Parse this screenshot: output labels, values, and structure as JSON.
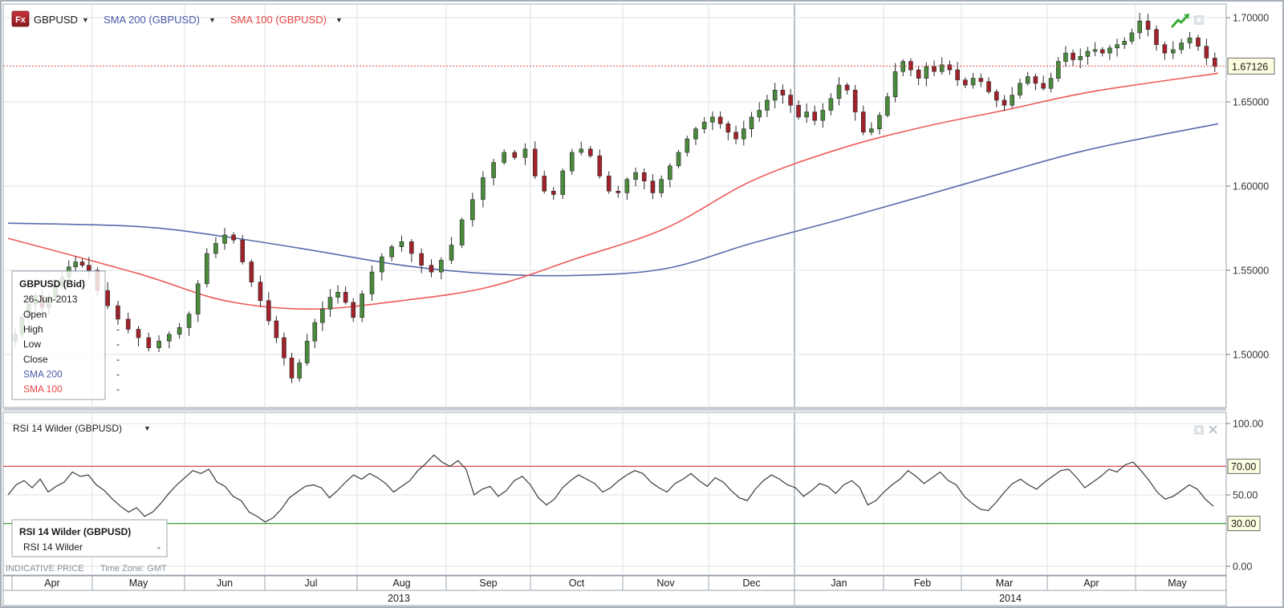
{
  "toolbar": {
    "symbol": "GBPUSD",
    "fx_badge": "Fx",
    "sma200_label": "SMA 200 (GBPUSD)",
    "sma100_label": "SMA 100 (GBPUSD)",
    "dropdown_glyph": "▼"
  },
  "colors": {
    "up_candle": "#4a8a3c",
    "down_candle": "#a2222a",
    "sma200": "#5a6aaa",
    "sma100": "#ee5a5a",
    "price_line": "#d84a4a",
    "rsi_line": "#3a3a3a",
    "rsi_upper": "#d84a4a",
    "rsi_lower": "#3a9a3a",
    "sma200_text": "#4a5aa8",
    "sma100_text": "#e84545"
  },
  "legend": {
    "title": "GBPUSD (Bid)",
    "date": "26-Jun-2013",
    "rows": [
      {
        "label": "Open",
        "value": "-"
      },
      {
        "label": "High",
        "value": "-"
      },
      {
        "label": "Low",
        "value": "-"
      },
      {
        "label": "Close",
        "value": "-"
      },
      {
        "label": "SMA 200",
        "value": "-"
      },
      {
        "label": "SMA 100",
        "value": "-"
      }
    ]
  },
  "rsi_panel": {
    "title": "RSI 14 Wilder (GBPUSD)",
    "legend_title": "RSI 14 Wilder (GBPUSD)",
    "legend_row_label": "RSI 14 Wilder",
    "legend_row_value": "-",
    "upper_label": "70.00",
    "lower_label": "30.00"
  },
  "footer": {
    "indicative": "INDICATIVE PRICE",
    "timezone": "Time Zone: GMT"
  },
  "icons": [
    "fx-badge-icon",
    "dropdown-arrow-icon",
    "trend-up-icon",
    "maximize-icon",
    "close-icon"
  ],
  "chart_data": [
    {
      "type": "candlestick",
      "title": "GBPUSD",
      "ylim": [
        1.465,
        1.71
      ],
      "y_ticks": [
        "1.70000",
        "1.65000",
        "1.60000",
        "1.55000",
        "1.50000"
      ],
      "current_price": 1.67126,
      "current_price_label": "1.67126",
      "x_months": [
        "Apr",
        "May",
        "Jun",
        "Jul",
        "Aug",
        "Sep",
        "Oct",
        "Nov",
        "Dec",
        "Jan",
        "Feb",
        "Mar",
        "Apr",
        "May"
      ],
      "x_years": [
        "2013",
        "2014"
      ],
      "close_path": [
        [
          1.512,
          1.522,
          1.53,
          1.535,
          1.528,
          1.534,
          1.541,
          1.546,
          1.552,
          1.555,
          1.553,
          1.55
        ],
        [
          1.538,
          1.529,
          1.521,
          1.515,
          1.51,
          1.504,
          1.508,
          1.512,
          1.516
        ],
        [
          1.524,
          1.542,
          1.56,
          1.566,
          1.571,
          1.568,
          1.555,
          1.543,
          1.532
        ],
        [
          1.52,
          1.51,
          1.498,
          1.486,
          1.495,
          1.508,
          1.519,
          1.527,
          1.534,
          1.537,
          1.531,
          1.522
        ],
        [
          1.536,
          1.549,
          1.558,
          1.564,
          1.567,
          1.56,
          1.553,
          1.549,
          1.556
        ],
        [
          1.565,
          1.58,
          1.592,
          1.605,
          1.614,
          1.62,
          1.617,
          1.622
        ],
        [
          1.606,
          1.597,
          1.595,
          1.609,
          1.62,
          1.622,
          1.618,
          1.606,
          1.597,
          1.596
        ],
        [
          1.604,
          1.608,
          1.603,
          1.596,
          1.604,
          1.612,
          1.62,
          1.628,
          1.634,
          1.638
        ],
        [
          1.641,
          1.637,
          1.632,
          1.628,
          1.634,
          1.641,
          1.645,
          1.651,
          1.657,
          1.654,
          1.648
        ],
        [
          1.641,
          1.644,
          1.639,
          1.645,
          1.652,
          1.66,
          1.657,
          1.644,
          1.632,
          1.634,
          1.642
        ],
        [
          1.653,
          1.668,
          1.674,
          1.669,
          1.664,
          1.671,
          1.668,
          1.672,
          1.669,
          1.663
        ],
        [
          1.66,
          1.664,
          1.662,
          1.656,
          1.651,
          1.648,
          1.654,
          1.661,
          1.665,
          1.661,
          1.658
        ],
        [
          1.664,
          1.674,
          1.679,
          1.675,
          1.677,
          1.68,
          1.681,
          1.679,
          1.682,
          1.684,
          1.686,
          1.691
        ],
        [
          1.698,
          1.693,
          1.684,
          1.679,
          1.681,
          1.685,
          1.688,
          1.683,
          1.676,
          1.671
        ]
      ],
      "series": [
        {
          "name": "SMA 200 (GBPUSD)",
          "y": [
            1.578,
            1.576,
            1.57,
            1.562,
            1.553,
            1.548,
            1.547,
            1.551,
            1.566,
            1.58,
            1.594,
            1.608,
            1.622,
            1.637
          ]
        },
        {
          "name": "SMA 100 (GBPUSD)",
          "y": [
            1.569,
            1.548,
            1.532,
            1.527,
            1.532,
            1.54,
            1.557,
            1.575,
            1.603,
            1.622,
            1.635,
            1.645,
            1.656,
            1.667
          ]
        }
      ]
    },
    {
      "type": "line",
      "title": "RSI 14 Wilder (GBPUSD)",
      "ylim": [
        0,
        100
      ],
      "y_ticks": [
        "100.00",
        "50.00",
        "0.00"
      ],
      "levels": [
        70,
        30
      ],
      "series": [
        {
          "name": "RSI 14 Wilder",
          "values": [
            50,
            57,
            60,
            55,
            61,
            52,
            56,
            59,
            66,
            63,
            64,
            57,
            53,
            47,
            42,
            38,
            41,
            35,
            38,
            44,
            51,
            57,
            62,
            67,
            65,
            68,
            59,
            56,
            49,
            46,
            38,
            35,
            31,
            34,
            40,
            48,
            52,
            56,
            57,
            55,
            48,
            53,
            59,
            64,
            61,
            65,
            62,
            58,
            52,
            56,
            60,
            67,
            72,
            78,
            73,
            70,
            74,
            68,
            50,
            54,
            56,
            49,
            53,
            60,
            63,
            57,
            48,
            43,
            47,
            55,
            60,
            64,
            61,
            58,
            52,
            55,
            60,
            64,
            67,
            65,
            59,
            55,
            52,
            58,
            61,
            65,
            60,
            56,
            62,
            59,
            53,
            48,
            46,
            54,
            60,
            64,
            61,
            57,
            55,
            49,
            53,
            58,
            56,
            51,
            57,
            60,
            55,
            43,
            46,
            52,
            57,
            61,
            67,
            63,
            58,
            62,
            66,
            60,
            57,
            49,
            44,
            40,
            39,
            45,
            52,
            58,
            61,
            57,
            54,
            59,
            63,
            67,
            68,
            62,
            55,
            59,
            63,
            68,
            66,
            71,
            73,
            67,
            60,
            52,
            47,
            49,
            53,
            57,
            54,
            47,
            42
          ]
        }
      ]
    }
  ]
}
